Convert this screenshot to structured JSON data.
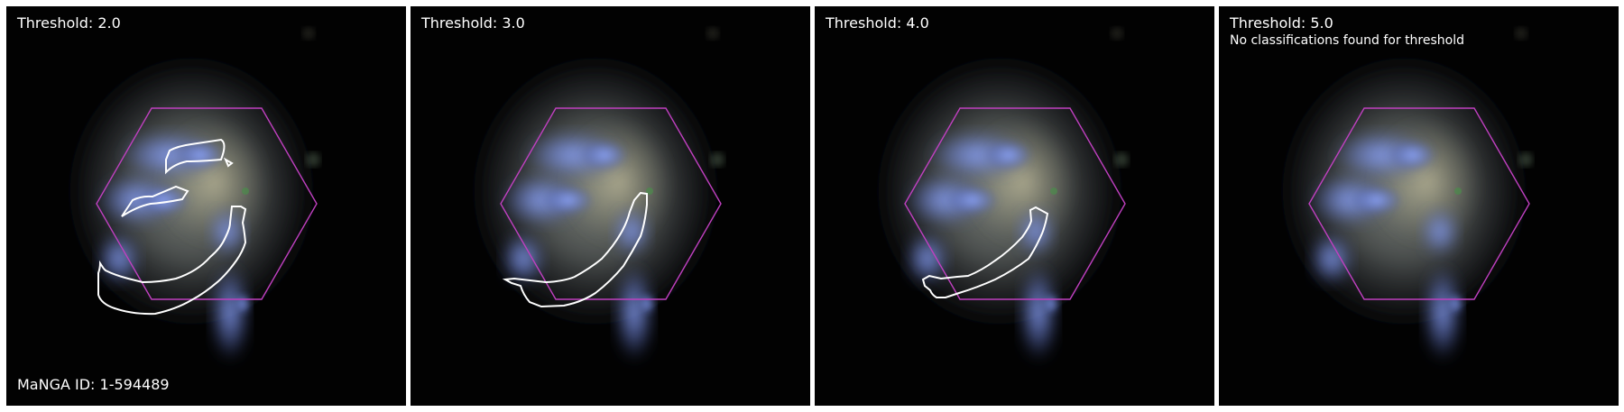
{
  "figure": {
    "manga_id_label": "MaNGA ID: 1-594489",
    "panels": [
      {
        "threshold_label": "Threshold: 2.0",
        "note": ""
      },
      {
        "threshold_label": "Threshold: 3.0",
        "note": ""
      },
      {
        "threshold_label": "Threshold: 4.0",
        "note": ""
      },
      {
        "threshold_label": "Threshold: 5.0",
        "note": "No classifications found for threshold"
      }
    ]
  },
  "colors": {
    "hexagon": "#c040c0",
    "contour": "#ffffff",
    "background": "#020202"
  }
}
